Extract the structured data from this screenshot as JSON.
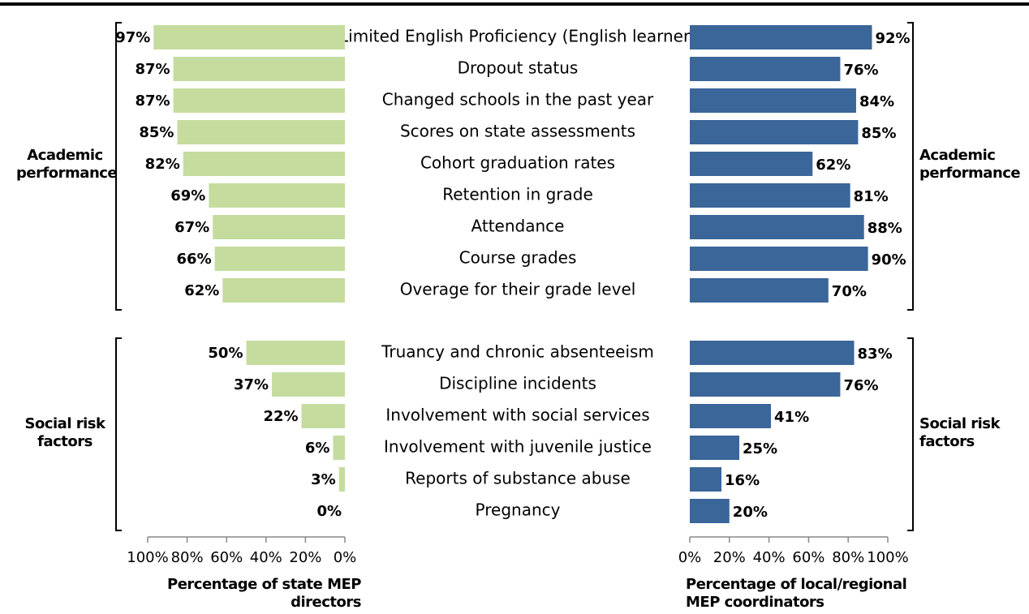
{
  "chart_data": {
    "type": "bar",
    "groups": [
      {
        "label": "Academic performance",
        "categories": [
          "Limited English Proficiency (English learner)",
          "Dropout status",
          "Changed schools in the past year",
          "Scores on state assessments",
          "Cohort graduation rates",
          "Retention in grade",
          "Attendance",
          "Course grades",
          "Overage for their grade level"
        ]
      },
      {
        "label": "Social risk factors",
        "categories": [
          "Truancy and chronic absenteeism",
          "Discipline incidents",
          "Involvement with social services",
          "Involvement with juvenile justice",
          "Reports of substance abuse",
          "Pregnancy"
        ]
      }
    ],
    "series": [
      {
        "name": "Percentage of state MEP directors",
        "color": "#c5dc9e",
        "values": [
          [
            97,
            87,
            87,
            85,
            82,
            69,
            67,
            66,
            62
          ],
          [
            50,
            37,
            22,
            6,
            3,
            0
          ]
        ],
        "value_labels": [
          [
            "97%",
            "87%",
            "87%",
            "85%",
            "82%",
            "69%",
            "67%",
            "66%",
            "62%"
          ],
          [
            "50%",
            "37%",
            "22%",
            "6%",
            "3%",
            "0%"
          ]
        ]
      },
      {
        "name": "Percentage of local/regional MEP coordinators",
        "color": "#3a6699",
        "values": [
          [
            92,
            76,
            84,
            85,
            62,
            81,
            88,
            90,
            70
          ],
          [
            83,
            76,
            41,
            25,
            16,
            20
          ]
        ],
        "value_labels": [
          [
            "92%",
            "76%",
            "84%",
            "85%",
            "62%",
            "81%",
            "88%",
            "90%",
            "70%"
          ],
          [
            "83%",
            "76%",
            "41%",
            "25%",
            "16%",
            "20%"
          ]
        ]
      }
    ],
    "xlim": [
      0,
      100
    ],
    "xticks": [
      {
        "value": 0,
        "label": "0%"
      },
      {
        "value": 20,
        "label": "20%"
      },
      {
        "value": 40,
        "label": "40%"
      },
      {
        "value": 60,
        "label": "60%"
      },
      {
        "value": 80,
        "label": "80%"
      },
      {
        "value": 100,
        "label": "100%"
      }
    ]
  }
}
